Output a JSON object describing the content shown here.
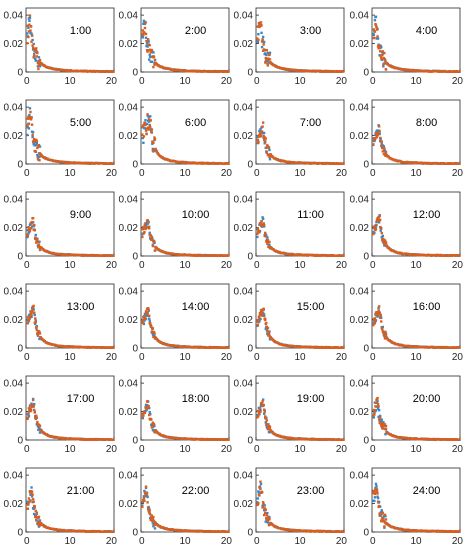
{
  "chart_data": {
    "type": "scatter",
    "layout": {
      "rows": 6,
      "cols": 4
    },
    "xlim": [
      0,
      20
    ],
    "ylim": [
      0,
      0.045
    ],
    "xticks": [
      0,
      10,
      20
    ],
    "yticks": [
      0,
      0.02,
      0.04
    ],
    "xtick_labels": [
      "0",
      "10",
      "20"
    ],
    "ytick_labels": [
      "0",
      "0.02",
      "0.04"
    ],
    "series_colors": [
      "#3a87c9",
      "#d95f1e"
    ],
    "panels": [
      {
        "label": "1:00",
        "peak_x": 0.9,
        "peak_y": 0.036,
        "scatter": 0.006
      },
      {
        "label": "2:00",
        "peak_x": 0.9,
        "peak_y": 0.035,
        "scatter": 0.006
      },
      {
        "label": "3:00",
        "peak_x": 1.0,
        "peak_y": 0.036,
        "scatter": 0.007
      },
      {
        "label": "4:00",
        "peak_x": 0.9,
        "peak_y": 0.036,
        "scatter": 0.006
      },
      {
        "label": "5:00",
        "peak_x": 1.0,
        "peak_y": 0.036,
        "scatter": 0.006
      },
      {
        "label": "6:00",
        "peak_x": 2.0,
        "peak_y": 0.032,
        "scatter": 0.007
      },
      {
        "label": "7:00",
        "peak_x": 1.6,
        "peak_y": 0.026,
        "scatter": 0.004
      },
      {
        "label": "8:00",
        "peak_x": 1.6,
        "peak_y": 0.025,
        "scatter": 0.003
      },
      {
        "label": "9:00",
        "peak_x": 1.6,
        "peak_y": 0.025,
        "scatter": 0.003
      },
      {
        "label": "10:00",
        "peak_x": 1.6,
        "peak_y": 0.025,
        "scatter": 0.003
      },
      {
        "label": "11:00",
        "peak_x": 1.6,
        "peak_y": 0.025,
        "scatter": 0.003
      },
      {
        "label": "12:00",
        "peak_x": 1.7,
        "peak_y": 0.027,
        "scatter": 0.003
      },
      {
        "label": "13:00",
        "peak_x": 1.7,
        "peak_y": 0.028,
        "scatter": 0.003
      },
      {
        "label": "14:00",
        "peak_x": 1.7,
        "peak_y": 0.027,
        "scatter": 0.003
      },
      {
        "label": "15:00",
        "peak_x": 1.7,
        "peak_y": 0.028,
        "scatter": 0.003
      },
      {
        "label": "16:00",
        "peak_x": 1.7,
        "peak_y": 0.028,
        "scatter": 0.003
      },
      {
        "label": "17:00",
        "peak_x": 1.7,
        "peak_y": 0.027,
        "scatter": 0.003
      },
      {
        "label": "18:00",
        "peak_x": 1.6,
        "peak_y": 0.026,
        "scatter": 0.003
      },
      {
        "label": "19:00",
        "peak_x": 1.6,
        "peak_y": 0.027,
        "scatter": 0.003
      },
      {
        "label": "20:00",
        "peak_x": 1.2,
        "peak_y": 0.028,
        "scatter": 0.004
      },
      {
        "label": "21:00",
        "peak_x": 1.3,
        "peak_y": 0.029,
        "scatter": 0.004
      },
      {
        "label": "22:00",
        "peak_x": 1.2,
        "peak_y": 0.03,
        "scatter": 0.004
      },
      {
        "label": "23:00",
        "peak_x": 1.1,
        "peak_y": 0.032,
        "scatter": 0.005
      },
      {
        "label": "24:00",
        "peak_x": 1.0,
        "peak_y": 0.033,
        "scatter": 0.005
      }
    ]
  }
}
